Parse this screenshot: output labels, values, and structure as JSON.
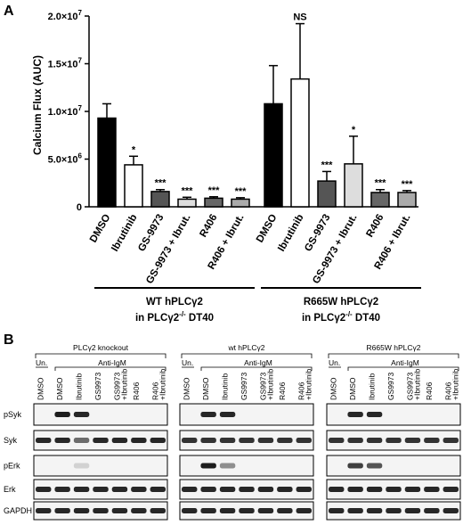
{
  "panel_a": {
    "letter": "A"
  },
  "panel_b": {
    "letter": "B"
  },
  "chart_data": {
    "type": "bar",
    "ylabel": "Calcium Flux (AUC)",
    "ylim": [
      0,
      20000000
    ],
    "y_tick_labels": [
      "0",
      "5.0×10",
      "1.0×10",
      "1.5×10",
      "2.0×10"
    ],
    "y_tick_exponents": [
      "",
      "6",
      "7",
      "7",
      "7"
    ],
    "y_tick_values": [
      0,
      5000000,
      10000000,
      15000000,
      20000000
    ],
    "groups": [
      {
        "label_line1": "WT hPLCγ2",
        "label_line2_prefix": "in PLCγ2",
        "label_line2_sup": "-/-",
        "label_line2_suffix": " DT40",
        "bars": [
          {
            "category": "DMSO",
            "value": 9300000,
            "error": 1500000,
            "sig": "",
            "color": "#000000"
          },
          {
            "category": "Ibrutinib",
            "value": 4400000,
            "error": 900000,
            "sig": "*",
            "color": "#ffffff"
          },
          {
            "category": "GS-9973",
            "value": 1600000,
            "error": 200000,
            "sig": "***",
            "color": "#555555"
          },
          {
            "category": "GS-9973 + Ibrut.",
            "value": 800000,
            "error": 200000,
            "sig": "***",
            "color": "#dddddd"
          },
          {
            "category": "R406",
            "value": 900000,
            "error": 150000,
            "sig": "***",
            "color": "#666666"
          },
          {
            "category": "R406 + Ibrut.",
            "value": 800000,
            "error": 150000,
            "sig": "***",
            "color": "#aaaaaa"
          }
        ]
      },
      {
        "label_line1": "R665W hPLCγ2",
        "label_line2_prefix": "in PLCγ2",
        "label_line2_sup": "-/-",
        "label_line2_suffix": " DT40",
        "bars": [
          {
            "category": "DMSO",
            "value": 10800000,
            "error": 4000000,
            "sig": "",
            "color": "#000000"
          },
          {
            "category": "Ibrutinib",
            "value": 13400000,
            "error": 5800000,
            "sig": "NS",
            "color": "#ffffff"
          },
          {
            "category": "GS-9973",
            "value": 2700000,
            "error": 1000000,
            "sig": "***",
            "color": "#555555"
          },
          {
            "category": "GS-9973 + Ibrut.",
            "value": 4500000,
            "error": 2900000,
            "sig": "*",
            "color": "#dddddd"
          },
          {
            "category": "R406",
            "value": 1500000,
            "error": 300000,
            "sig": "***",
            "color": "#666666"
          },
          {
            "category": "R406 + Ibrut.",
            "value": 1500000,
            "error": 200000,
            "sig": "***",
            "color": "#aaaaaa"
          }
        ]
      }
    ]
  },
  "blot": {
    "panels": [
      {
        "title": "PLCγ2 knockout",
        "untreated": "Un.",
        "treatment": "Anti-IgM"
      },
      {
        "title": "wt hPLCγ2",
        "untreated": "Un.",
        "treatment": "Anti-IgM"
      },
      {
        "title": "R665W hPLCγ2",
        "untreated": "Un.",
        "treatment": "Anti-IgM"
      }
    ],
    "lanes": [
      {
        "line1": "DMSO",
        "line2": ""
      },
      {
        "line1": "DMSO",
        "line2": ""
      },
      {
        "line1": "Ibrutinib",
        "line2": ""
      },
      {
        "line1": "GS9973",
        "line2": ""
      },
      {
        "line1": "GS9973",
        "line2": "+Ibrutinib"
      },
      {
        "line1": "R406",
        "line2": ""
      },
      {
        "line1": "R406",
        "line2": "+Ibrutinib"
      }
    ],
    "rows": [
      "pSyk",
      "Syk",
      "pErk",
      "Erk",
      "GAPDH"
    ]
  }
}
